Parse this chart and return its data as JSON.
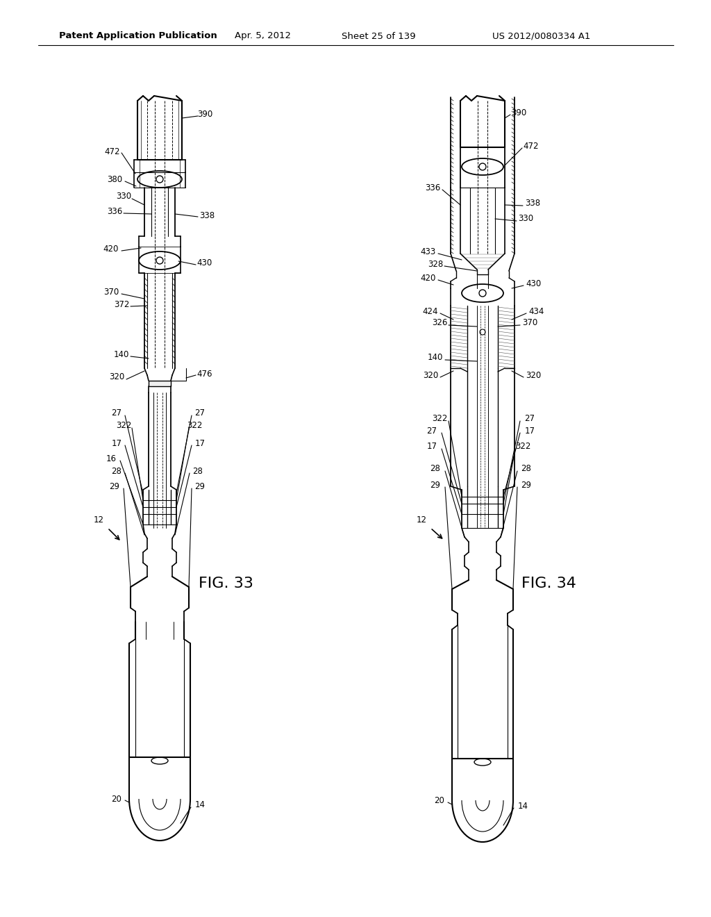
{
  "bg_color": "#ffffff",
  "header_text": "Patent Application Publication",
  "header_date": "Apr. 5, 2012",
  "header_sheet": "Sheet 25 of 139",
  "header_patent": "US 2012/0080334 A1",
  "fig33_label": "FIG. 33",
  "fig34_label": "FIG. 34"
}
